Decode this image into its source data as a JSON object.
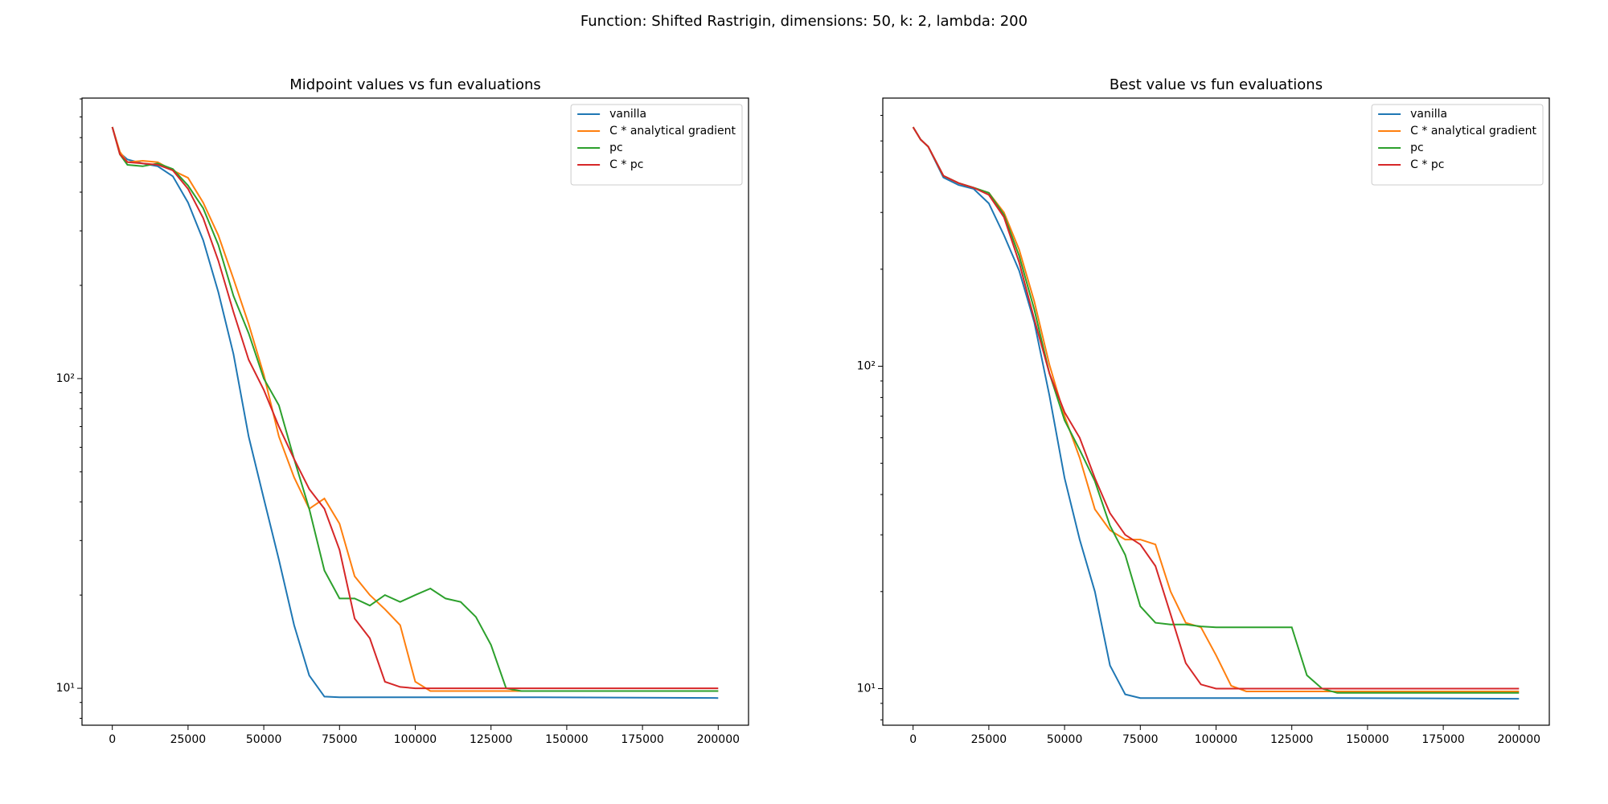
{
  "title": "Function: Shifted Rastrigin, dimensions: 50, k: 2, lambda: 200",
  "chart_data": [
    {
      "type": "line",
      "title": "Midpoint values vs fun evaluations",
      "ylog": true,
      "legend": "upper right",
      "xlim": [
        -10000,
        210000
      ],
      "xticks": [
        0,
        25000,
        50000,
        75000,
        100000,
        125000,
        150000,
        175000,
        200000
      ],
      "ylim": [
        7.6,
        805
      ],
      "yticks": [
        {
          "value": 10,
          "label": "10¹"
        },
        {
          "value": 100,
          "label": "10²"
        }
      ],
      "minor_yticks": [
        8,
        9,
        20,
        30,
        40,
        50,
        60,
        70,
        80,
        90,
        200,
        300,
        400,
        500,
        600,
        700,
        800
      ],
      "x": [
        0,
        2500,
        5000,
        10000,
        15000,
        20000,
        25000,
        30000,
        35000,
        40000,
        45000,
        50000,
        55000,
        60000,
        65000,
        70000,
        75000,
        80000,
        85000,
        90000,
        95000,
        100000,
        105000,
        110000,
        115000,
        120000,
        125000,
        130000,
        135000,
        140000,
        200000
      ],
      "series": [
        {
          "name": "vanilla",
          "color": "#1f77b4",
          "values": [
            649,
            535,
            510,
            495,
            485,
            450,
            370,
            280,
            190,
            120,
            65,
            41,
            26,
            16,
            11,
            9.4,
            9.35,
            9.35,
            9.35,
            9.35,
            9.35,
            9.35,
            9.35,
            9.35,
            9.35,
            9.35,
            9.35,
            9.35,
            9.35,
            9.35,
            9.3
          ]
        },
        {
          "name": "C * analytical gradient",
          "color": "#ff7f0e",
          "values": [
            649,
            540,
            500,
            505,
            500,
            470,
            445,
            370,
            290,
            210,
            150,
            103,
            65,
            48,
            38,
            41,
            34,
            23,
            20,
            18,
            16,
            10.5,
            9.8,
            9.8,
            9.8,
            9.8,
            9.8,
            9.8,
            9.8,
            9.8,
            9.8
          ]
        },
        {
          "name": "pc",
          "color": "#2ca02c",
          "values": [
            649,
            530,
            490,
            485,
            495,
            475,
            420,
            355,
            270,
            185,
            140,
            100,
            82,
            55,
            38,
            24,
            19.5,
            19.5,
            18.5,
            20,
            19,
            20,
            21,
            19.5,
            19,
            17,
            13.8,
            10,
            9.8,
            9.8,
            9.8
          ]
        },
        {
          "name": "C * pc",
          "color": "#d62728",
          "values": [
            649,
            530,
            500,
            495,
            490,
            470,
            410,
            330,
            240,
            164,
            115,
            92,
            70,
            55,
            44,
            38,
            28,
            16.8,
            14.5,
            10.5,
            10.1,
            10,
            10,
            10,
            10,
            10,
            10,
            10,
            10,
            10,
            10
          ]
        }
      ]
    },
    {
      "type": "line",
      "title": "Best value vs fun evaluations",
      "ylog": true,
      "legend": "upper right",
      "xlim": [
        -10000,
        210000
      ],
      "xticks": [
        0,
        25000,
        50000,
        75000,
        100000,
        125000,
        150000,
        175000,
        200000
      ],
      "ylim": [
        7.7,
        679
      ],
      "yticks": [
        {
          "value": 10,
          "label": "10¹"
        },
        {
          "value": 100,
          "label": "10²"
        }
      ],
      "minor_yticks": [
        8,
        9,
        20,
        30,
        40,
        50,
        60,
        70,
        80,
        90,
        200,
        300,
        400,
        500,
        600
      ],
      "x": [
        0,
        2500,
        5000,
        10000,
        15000,
        20000,
        25000,
        30000,
        35000,
        40000,
        45000,
        50000,
        55000,
        60000,
        65000,
        70000,
        75000,
        80000,
        85000,
        90000,
        95000,
        100000,
        105000,
        110000,
        115000,
        120000,
        125000,
        130000,
        135000,
        140000,
        200000
      ],
      "series": [
        {
          "name": "vanilla",
          "color": "#1f77b4",
          "values": [
            552,
            505,
            480,
            385,
            365,
            355,
            320,
            255,
            198,
            137,
            81,
            45,
            29,
            20,
            11.8,
            9.6,
            9.35,
            9.35,
            9.35,
            9.35,
            9.35,
            9.35,
            9.35,
            9.35,
            9.35,
            9.35,
            9.35,
            9.35,
            9.35,
            9.35,
            9.3
          ]
        },
        {
          "name": "C * analytical gradient",
          "color": "#ff7f0e",
          "values": [
            552,
            505,
            480,
            390,
            370,
            358,
            345,
            300,
            230,
            159,
            101,
            70,
            52,
            36,
            31,
            29,
            29,
            28,
            20,
            16,
            15.5,
            12.7,
            10.2,
            9.8,
            9.8,
            9.8,
            9.8,
            9.8,
            9.8,
            9.8,
            9.8
          ]
        },
        {
          "name": "pc",
          "color": "#2ca02c",
          "values": [
            552,
            505,
            480,
            390,
            370,
            358,
            345,
            295,
            220,
            150,
            95,
            68,
            55,
            44,
            32,
            26,
            18,
            16,
            15.8,
            15.8,
            15.6,
            15.5,
            15.5,
            15.5,
            15.5,
            15.5,
            15.5,
            11,
            10,
            9.7,
            9.7
          ]
        },
        {
          "name": "C * pc",
          "color": "#d62728",
          "values": [
            552,
            505,
            480,
            390,
            370,
            358,
            340,
            290,
            210,
            140,
            95,
            72,
            60,
            45,
            35,
            30,
            28,
            24,
            17,
            12,
            10.3,
            10,
            10,
            10,
            10,
            10,
            10,
            10,
            10,
            10,
            10
          ]
        }
      ]
    }
  ]
}
